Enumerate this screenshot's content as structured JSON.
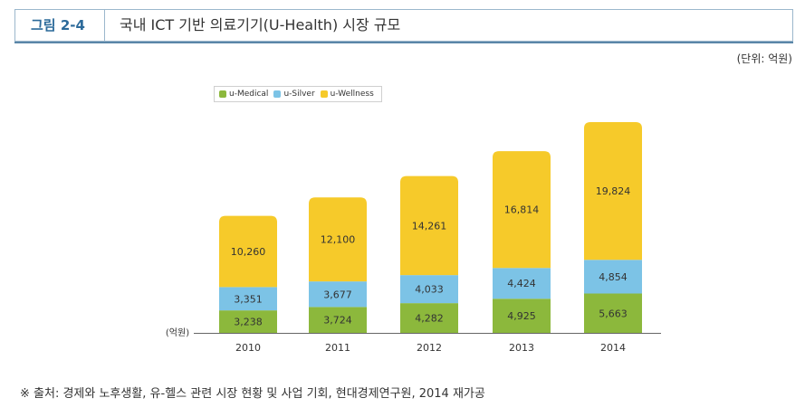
{
  "figure": {
    "label": "그림 2-4",
    "title": "국내 ICT 기반 의료기기(U-Health) 시장 규모",
    "unit": "(단위: 억원)",
    "source": "※ 출처: 경제와 노후생활, 유-헬스 관련 시장 현황 및 사업 기회, 현대경제연구원, 2014 재가공"
  },
  "colors": {
    "accent": "#2c6a9a",
    "medical": "#8cb83c",
    "silver": "#7cc3e6",
    "wellness": "#f6ca2a"
  },
  "chart_data": {
    "type": "bar",
    "stacked": true,
    "categories": [
      "2010",
      "2011",
      "2012",
      "2013",
      "2014"
    ],
    "ylabel": "(억원)",
    "series": [
      {
        "name": "u-Medical",
        "values": [
          3238,
          3724,
          4282,
          4925,
          5663
        ],
        "labels": [
          "3,238",
          "3,724",
          "4,282",
          "4,925",
          "5,663"
        ]
      },
      {
        "name": "u-Silver",
        "values": [
          3351,
          3677,
          4033,
          4424,
          4854
        ],
        "labels": [
          "3,351",
          "3,677",
          "4,033",
          "4,424",
          "4,854"
        ]
      },
      {
        "name": "u-Wellness",
        "values": [
          10260,
          12100,
          14261,
          16814,
          19824
        ],
        "labels": [
          "10,260",
          "12,100",
          "14,261",
          "16,814",
          "19,824"
        ]
      }
    ],
    "legend_position": "top-left",
    "grid": false
  }
}
